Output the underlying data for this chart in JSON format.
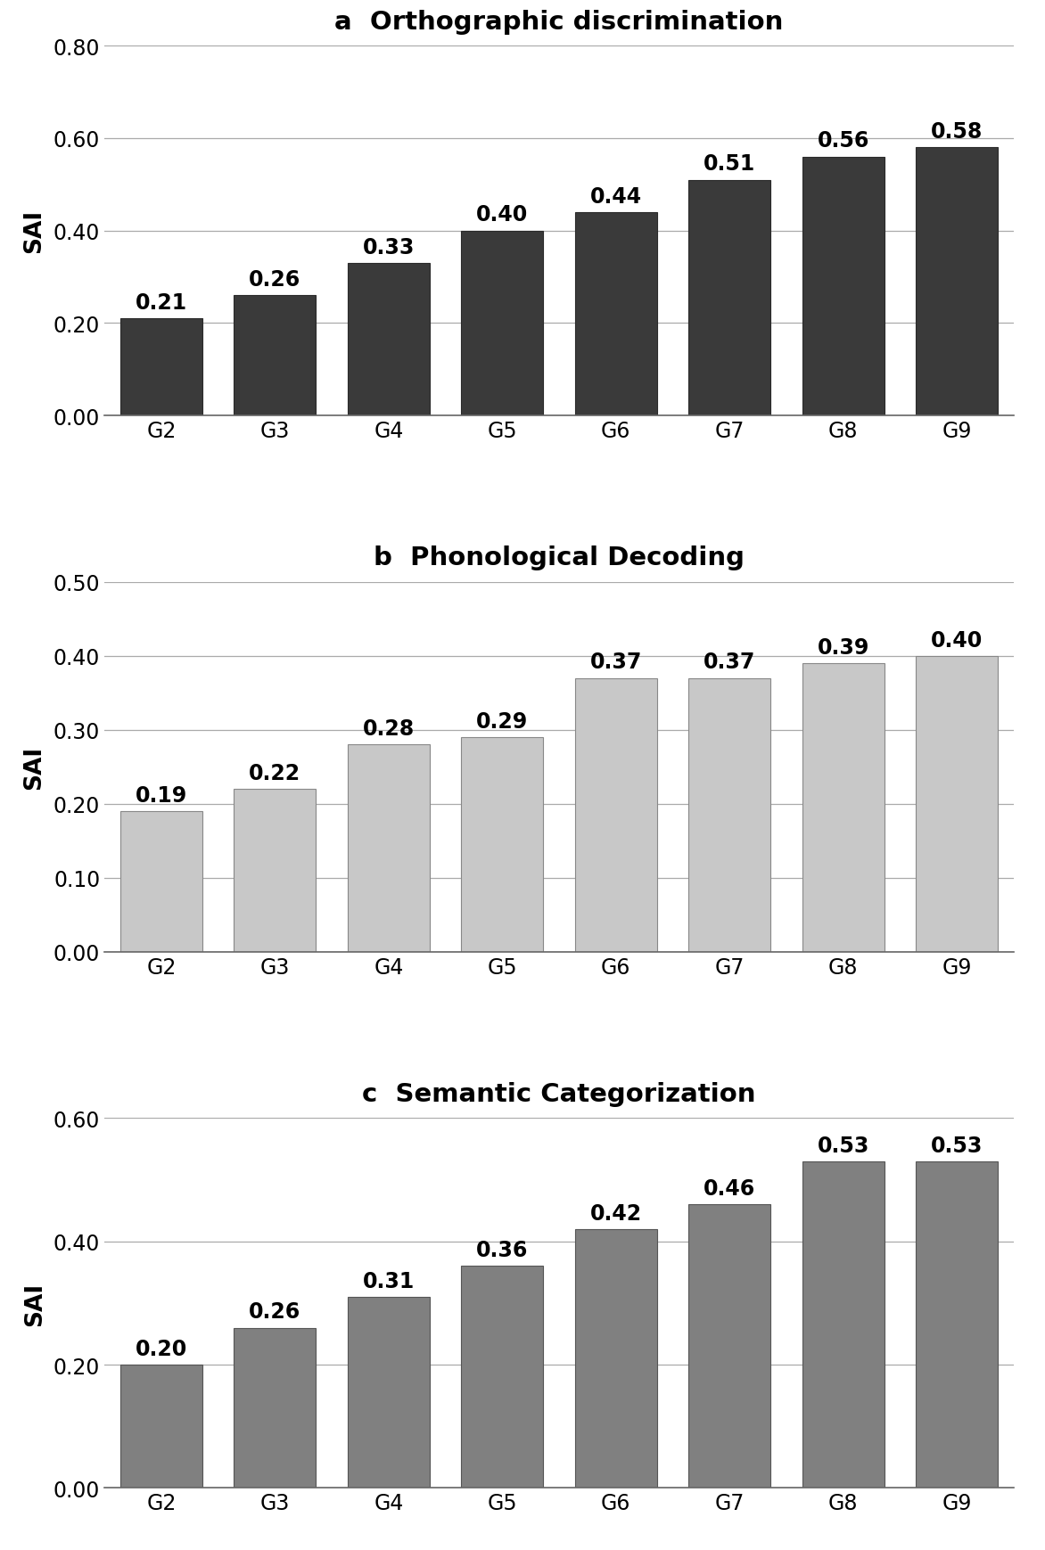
{
  "charts": [
    {
      "title": "a  Orthographic discrimination",
      "categories": [
        "G2",
        "G3",
        "G4",
        "G5",
        "G6",
        "G7",
        "G8",
        "G9"
      ],
      "values": [
        0.21,
        0.26,
        0.33,
        0.4,
        0.44,
        0.51,
        0.56,
        0.58
      ],
      "bar_color": "#3a3a3a",
      "bar_edge_color": "#2a2a2a",
      "ylim": [
        0.0,
        0.8
      ],
      "yticks": [
        0.0,
        0.2,
        0.4,
        0.6,
        0.8
      ],
      "ylabel": "SAI"
    },
    {
      "title": "b  Phonological Decoding",
      "categories": [
        "G2",
        "G3",
        "G4",
        "G5",
        "G6",
        "G7",
        "G8",
        "G9"
      ],
      "values": [
        0.19,
        0.22,
        0.28,
        0.29,
        0.37,
        0.37,
        0.39,
        0.4
      ],
      "bar_color": "#c8c8c8",
      "bar_edge_color": "#888888",
      "ylim": [
        0.0,
        0.5
      ],
      "yticks": [
        0.0,
        0.1,
        0.2,
        0.3,
        0.4,
        0.5
      ],
      "ylabel": "SAI"
    },
    {
      "title": "c  Semantic Categorization",
      "categories": [
        "G2",
        "G3",
        "G4",
        "G5",
        "G6",
        "G7",
        "G8",
        "G9"
      ],
      "values": [
        0.2,
        0.26,
        0.31,
        0.36,
        0.42,
        0.46,
        0.53,
        0.53
      ],
      "bar_color": "#808080",
      "bar_edge_color": "#555555",
      "ylim": [
        0.0,
        0.6
      ],
      "yticks": [
        0.0,
        0.2,
        0.4,
        0.6
      ],
      "ylabel": "SAI"
    }
  ],
  "background_color": "#ffffff",
  "title_fontsize": 21,
  "tick_fontsize": 17,
  "bar_label_fontsize": 17,
  "ylabel_fontsize": 19,
  "bar_width": 0.72,
  "figure_width": 11.72,
  "figure_height": 17.4,
  "dpi": 100
}
